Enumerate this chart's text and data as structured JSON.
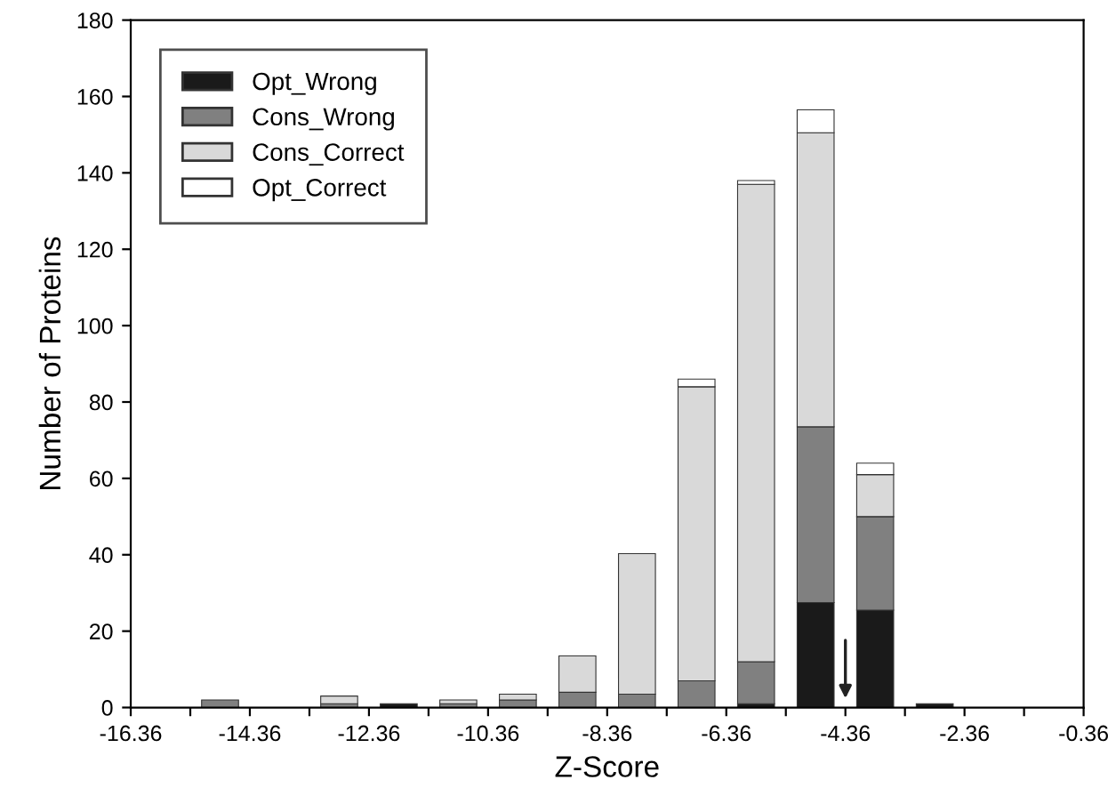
{
  "chart_data": {
    "type": "bar",
    "stacked": true,
    "xlabel": "Z-Score",
    "ylabel": "Number of Proteins",
    "x": [
      -14.86,
      -13.86,
      -12.86,
      -11.86,
      -10.86,
      -9.86,
      -8.86,
      -7.86,
      -6.86,
      -5.86,
      -4.86,
      -3.86,
      -2.86
    ],
    "series": [
      {
        "name": "Opt_Wrong",
        "color": "#1a1a1a",
        "values": [
          null,
          null,
          null,
          1,
          null,
          null,
          null,
          null,
          null,
          1,
          27.5,
          25.5,
          1
        ]
      },
      {
        "name": "Cons_Wrong",
        "color": "#808080",
        "values": [
          2,
          null,
          1,
          null,
          1,
          2,
          4,
          3.5,
          7,
          11,
          46,
          24.5,
          null
        ]
      },
      {
        "name": "Cons_Correct",
        "color": "#d9d9d9",
        "values": [
          null,
          null,
          2,
          null,
          1,
          1.5,
          9.5,
          36.8,
          77,
          125,
          77,
          11,
          null
        ]
      },
      {
        "name": "Opt_Correct",
        "color": "#ffffff",
        "values": [
          null,
          null,
          null,
          null,
          null,
          null,
          null,
          null,
          2,
          1,
          6,
          3,
          null
        ]
      }
    ],
    "xlim": [
      -16.36,
      -0.36
    ],
    "xticks": [
      -16.36,
      {
        "value": -15.36,
        "label": null
      },
      -14.36,
      {
        "value": -13.36,
        "label": null
      },
      -12.36,
      {
        "value": -11.36,
        "label": null
      },
      -10.36,
      {
        "value": -9.36,
        "label": null
      },
      -8.36,
      {
        "value": -7.36,
        "label": null
      },
      -6.36,
      {
        "value": -5.36,
        "label": null
      },
      -4.36,
      {
        "value": -3.36,
        "label": null
      },
      -2.36,
      {
        "value": -1.36,
        "label": null
      },
      -0.36
    ],
    "ylim": [
      0,
      180
    ],
    "yticks": [
      0,
      20,
      40,
      60,
      80,
      100,
      120,
      140,
      160,
      180
    ],
    "legend": "top left",
    "grid": false
  }
}
